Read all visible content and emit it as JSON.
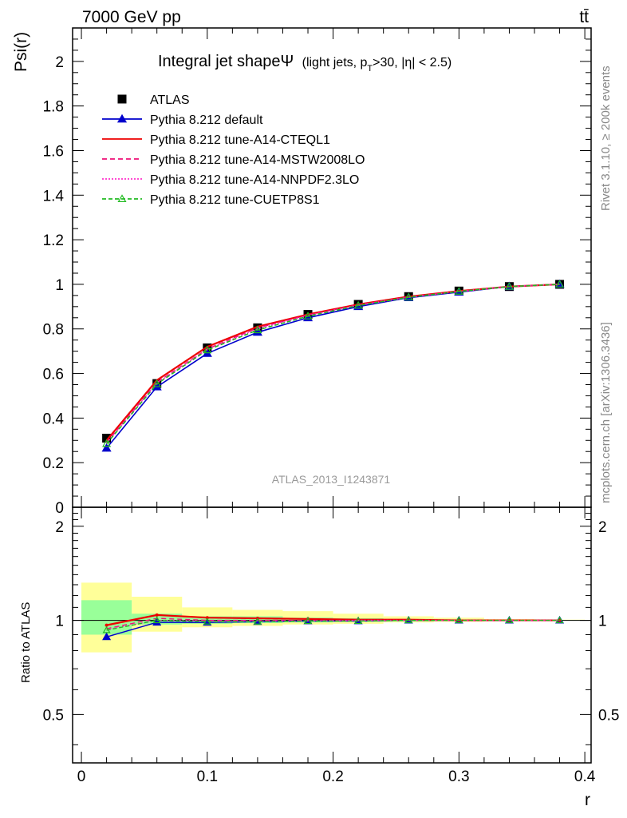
{
  "header": {
    "energy_label": "7000 GeV pp",
    "process_label": "tt̄"
  },
  "side_labels": {
    "rivet": "Rivet 3.1.10, ≥ 200k events",
    "mcplots": "mcplots.cern.ch [arXiv:1306.3436]"
  },
  "watermark": "ATLAS_2013_I1243871",
  "chart_data": {
    "type": "line",
    "title_main": "Integral jet shapeΨ",
    "title_detail": "(light jets, p_T>30, |η| < 2.5)",
    "title_parts": {
      "a": "(light jets, p",
      "sub": "T",
      "b": ">30, |η| < 2.5)"
    },
    "xlabel": "r",
    "ylabel": "Psi(r)",
    "ratio_ylabel": "Ratio to ATLAS",
    "xlim": [
      -0.007,
      0.405
    ],
    "ylim": [
      0,
      2.15
    ],
    "ratio_ylim": [
      0.35,
      2.3
    ],
    "x_ticks": [
      "0",
      "0.1",
      "0.2",
      "0.3",
      "0.4"
    ],
    "y_ticks": [
      "0",
      "0.2",
      "0.4",
      "0.6",
      "0.8",
      "1",
      "1.2",
      "1.4",
      "1.6",
      "1.8",
      "2"
    ],
    "ratio_ticks": [
      "0.5",
      "1",
      "2"
    ],
    "x": [
      0.02,
      0.06,
      0.1,
      0.14,
      0.18,
      0.22,
      0.26,
      0.3,
      0.34,
      0.38
    ],
    "bin_edges": [
      0.0,
      0.04,
      0.08,
      0.12,
      0.16,
      0.2,
      0.24,
      0.28,
      0.32,
      0.36,
      0.4
    ],
    "data": {
      "name": "ATLAS",
      "values": [
        0.31,
        0.555,
        0.715,
        0.805,
        0.865,
        0.91,
        0.945,
        0.97,
        0.99,
        1.0
      ]
    },
    "band_inner": [
      [
        0.9,
        1.16
      ],
      [
        0.97,
        1.05
      ],
      [
        0.975,
        1.03
      ],
      [
        0.98,
        1.03
      ],
      [
        0.985,
        1.02
      ],
      [
        0.99,
        1.015
      ],
      [
        0.993,
        1.01
      ],
      [
        0.995,
        1.007
      ],
      [
        0.997,
        1.004
      ],
      [
        0.999,
        1.002
      ]
    ],
    "band_outer": [
      [
        0.79,
        1.32
      ],
      [
        0.92,
        1.19
      ],
      [
        0.95,
        1.1
      ],
      [
        0.96,
        1.08
      ],
      [
        0.97,
        1.07
      ],
      [
        0.975,
        1.05
      ],
      [
        0.985,
        1.03
      ],
      [
        0.99,
        1.02
      ],
      [
        0.995,
        1.01
      ],
      [
        0.998,
        1.005
      ]
    ],
    "series": [
      {
        "name": "Pythia 8.212 default",
        "color": "#0000cc",
        "dash": "",
        "marker": "triangle-filled",
        "values": [
          0.265,
          0.54,
          0.69,
          0.785,
          0.85,
          0.9,
          0.94,
          0.965,
          0.99,
          1.0
        ]
      },
      {
        "name": "Pythia 8.212 tune-A14-CTEQL1",
        "color": "#ee0000",
        "dash": "",
        "marker": "none",
        "values": [
          0.3,
          0.57,
          0.72,
          0.81,
          0.865,
          0.91,
          0.945,
          0.97,
          0.99,
          1.0
        ]
      },
      {
        "name": "Pythia 8.212 tune-A14-MSTW2008LO",
        "color": "#ee1177",
        "dash": "6,4",
        "marker": "none",
        "values": [
          0.29,
          0.56,
          0.71,
          0.805,
          0.862,
          0.908,
          0.943,
          0.968,
          0.99,
          1.0
        ]
      },
      {
        "name": "Pythia 8.212 tune-A14-NNPDF2.3LO",
        "color": "#ff33cc",
        "dash": "2,2",
        "marker": "none",
        "values": [
          0.288,
          0.557,
          0.708,
          0.8,
          0.86,
          0.906,
          0.942,
          0.968,
          0.99,
          1.0
        ]
      },
      {
        "name": "Pythia 8.212 tune-CUETP8S1",
        "color": "#22bb22",
        "dash": "5,3",
        "marker": "triangle-open",
        "values": [
          0.285,
          0.553,
          0.705,
          0.795,
          0.857,
          0.905,
          0.942,
          0.968,
          0.99,
          1.0
        ]
      }
    ],
    "ratios": [
      [
        0.885,
        0.985,
        0.985,
        0.99,
        0.995,
        0.995,
        1.0,
        1.0,
        1.0,
        1.0
      ],
      [
        0.965,
        1.04,
        1.02,
        1.015,
        1.01,
        1.005,
        1.005,
        1.0,
        1.0,
        1.0
      ],
      [
        0.94,
        1.015,
        1.0,
        1.0,
        1.0,
        1.0,
        1.0,
        1.0,
        1.0,
        1.0
      ],
      [
        0.935,
        1.0,
        0.995,
        0.995,
        0.995,
        1.0,
        1.0,
        1.0,
        1.0,
        1.0
      ],
      [
        0.93,
        1.0,
        0.99,
        0.99,
        0.995,
        0.995,
        1.0,
        1.0,
        1.0,
        1.0
      ]
    ],
    "legend_position": "top-left",
    "band_colors": {
      "inner": "#99ff99",
      "outer": "#ffff99"
    }
  }
}
